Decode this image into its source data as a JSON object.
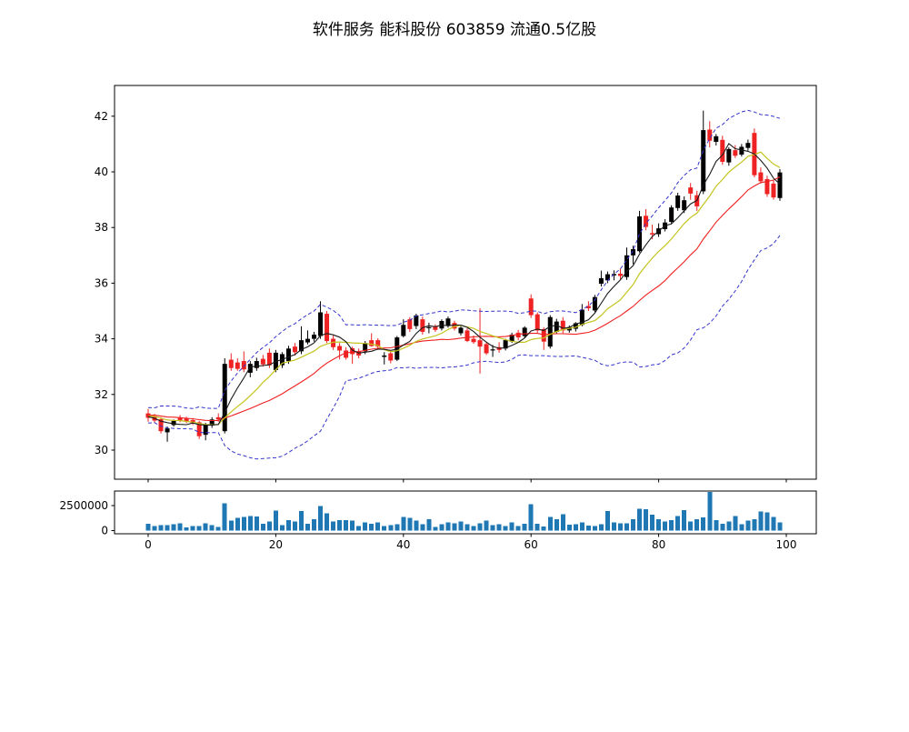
{
  "chart": {
    "title": "软件服务 能科股份 603859 流通0.5亿股"
  },
  "chart_data": {
    "type": "candlestick+volume",
    "title": "软件服务 能科股份 603859 流通0.5亿股",
    "x_axis": {
      "ticks": [
        0,
        20,
        40,
        60,
        80,
        100
      ],
      "lim": [
        -5.3,
        104.7
      ]
    },
    "price_axis": {
      "ticks": [
        30,
        32,
        34,
        36,
        38,
        40,
        42
      ],
      "lim": [
        28.95,
        43.1
      ]
    },
    "volume_axis": {
      "ticks": [
        0,
        2500000
      ],
      "tick_labels": [
        "0",
        "2500000"
      ],
      "lim": [
        -320000,
        3950000
      ]
    },
    "grid": false,
    "legend": false,
    "overlays": {
      "ma_fast": 5,
      "ma_mid": 10,
      "ma_slow": 20,
      "boll_window": 20,
      "boll_k": 2,
      "seed_closes": [
        31.0,
        31.3,
        31.45,
        31.2,
        31.35,
        31.5,
        31.3,
        31.15,
        31.4,
        31.25,
        31.05,
        31.3,
        31.45,
        31.2,
        31.1,
        31.35,
        31.2,
        31.05,
        31.25
      ]
    },
    "colors": {
      "up_candle": "#000000",
      "down_candle": "#ee2222",
      "ma_fast": "#1a1a1a",
      "ma_mid": "#c4c41e",
      "ma_slow": "#f02020",
      "bollinger": "#3333cc",
      "volume_bar": "#1f77b4",
      "axis": "#000000",
      "background": "#ffffff"
    },
    "candles_format": [
      "open",
      "high",
      "low",
      "close",
      "volume"
    ],
    "candles": [
      [
        31.32,
        31.48,
        31.02,
        31.16,
        700000
      ],
      [
        31.22,
        31.3,
        30.98,
        31.06,
        440000
      ],
      [
        31.11,
        31.18,
        30.6,
        30.68,
        530000
      ],
      [
        30.64,
        30.85,
        30.3,
        30.78,
        530000
      ],
      [
        30.9,
        31.1,
        30.85,
        31.05,
        620000
      ],
      [
        31.16,
        31.26,
        31.0,
        31.05,
        740000
      ],
      [
        31.14,
        31.2,
        30.97,
        31.02,
        320000
      ],
      [
        31.08,
        31.15,
        30.9,
        30.97,
        440000
      ],
      [
        31.0,
        31.05,
        30.4,
        30.5,
        440000
      ],
      [
        30.55,
        30.98,
        30.35,
        30.93,
        740000
      ],
      [
        30.88,
        31.18,
        30.8,
        31.1,
        530000
      ],
      [
        31.18,
        31.32,
        31.02,
        31.1,
        380000
      ],
      [
        30.68,
        33.3,
        30.6,
        33.1,
        2740000
      ],
      [
        33.25,
        33.48,
        32.85,
        32.95,
        980000
      ],
      [
        33.15,
        33.3,
        32.85,
        32.92,
        1290000
      ],
      [
        33.2,
        33.55,
        32.8,
        32.9,
        1350000
      ],
      [
        32.78,
        33.2,
        32.62,
        33.1,
        1440000
      ],
      [
        32.95,
        33.32,
        32.85,
        33.2,
        1400000
      ],
      [
        33.28,
        33.42,
        33.0,
        33.08,
        680000
      ],
      [
        33.5,
        33.65,
        32.95,
        33.05,
        920000
      ],
      [
        32.88,
        33.6,
        32.8,
        33.5,
        2000000
      ],
      [
        33.05,
        33.52,
        32.95,
        33.45,
        530000
      ],
      [
        33.2,
        33.75,
        33.1,
        33.65,
        1050000
      ],
      [
        33.72,
        33.85,
        33.4,
        33.52,
        920000
      ],
      [
        33.55,
        34.45,
        33.45,
        33.95,
        1950000
      ],
      [
        33.87,
        34.3,
        33.8,
        34.0,
        680000
      ],
      [
        34.0,
        34.25,
        33.9,
        34.15,
        1140000
      ],
      [
        34.1,
        35.35,
        34.0,
        34.95,
        2440000
      ],
      [
        34.9,
        35.0,
        33.85,
        33.92,
        1740000
      ],
      [
        34.0,
        34.12,
        33.6,
        33.7,
        920000
      ],
      [
        33.74,
        33.85,
        33.26,
        33.58,
        1050000
      ],
      [
        33.58,
        33.7,
        33.25,
        33.32,
        1050000
      ],
      [
        33.66,
        33.72,
        33.1,
        33.45,
        980000
      ],
      [
        33.56,
        33.65,
        33.3,
        33.4,
        440000
      ],
      [
        33.55,
        33.92,
        33.45,
        33.85,
        830000
      ],
      [
        33.95,
        34.2,
        33.72,
        33.74,
        680000
      ],
      [
        33.95,
        34.02,
        33.6,
        33.72,
        830000
      ],
      [
        33.35,
        33.52,
        33.08,
        33.4,
        440000
      ],
      [
        33.48,
        33.56,
        33.12,
        33.22,
        530000
      ],
      [
        33.25,
        34.1,
        33.2,
        34.05,
        620000
      ],
      [
        34.1,
        34.7,
        34.05,
        34.5,
        1350000
      ],
      [
        34.7,
        34.78,
        34.25,
        34.35,
        1290000
      ],
      [
        34.46,
        34.9,
        34.35,
        34.84,
        980000
      ],
      [
        34.7,
        34.8,
        34.15,
        34.25,
        620000
      ],
      [
        34.4,
        34.58,
        34.2,
        34.42,
        1140000
      ],
      [
        34.45,
        34.52,
        34.25,
        34.32,
        380000
      ],
      [
        34.37,
        34.7,
        34.3,
        34.64,
        620000
      ],
      [
        34.46,
        34.8,
        34.4,
        34.73,
        830000
      ],
      [
        34.57,
        34.65,
        34.3,
        34.37,
        740000
      ],
      [
        34.2,
        34.45,
        34.12,
        34.4,
        920000
      ],
      [
        34.3,
        34.38,
        33.88,
        33.92,
        620000
      ],
      [
        34.0,
        34.12,
        33.82,
        33.88,
        440000
      ],
      [
        33.95,
        35.1,
        32.75,
        33.72,
        740000
      ],
      [
        33.81,
        33.9,
        33.42,
        33.48,
        980000
      ],
      [
        33.58,
        33.78,
        33.35,
        33.62,
        530000
      ],
      [
        33.7,
        33.88,
        33.5,
        33.6,
        620000
      ],
      [
        33.65,
        34.0,
        33.58,
        33.95,
        440000
      ],
      [
        33.9,
        34.22,
        33.85,
        34.15,
        830000
      ],
      [
        34.22,
        34.32,
        33.95,
        34.05,
        440000
      ],
      [
        34.1,
        34.45,
        34.02,
        34.4,
        680000
      ],
      [
        35.45,
        35.6,
        34.75,
        34.85,
        2650000
      ],
      [
        34.88,
        34.95,
        34.22,
        34.3,
        680000
      ],
      [
        34.35,
        34.42,
        33.6,
        33.9,
        400000
      ],
      [
        33.72,
        34.85,
        33.65,
        34.78,
        1350000
      ],
      [
        34.25,
        34.72,
        34.18,
        34.62,
        1140000
      ],
      [
        34.65,
        34.78,
        34.2,
        34.3,
        1650000
      ],
      [
        34.3,
        34.48,
        34.22,
        34.42,
        600000
      ],
      [
        34.36,
        34.6,
        34.26,
        34.56,
        620000
      ],
      [
        34.5,
        35.25,
        34.45,
        35.05,
        830000
      ],
      [
        35.18,
        35.35,
        35.0,
        35.1,
        500000
      ],
      [
        35.02,
        35.58,
        34.96,
        35.5,
        450000
      ],
      [
        35.98,
        36.45,
        35.88,
        36.18,
        620000
      ],
      [
        36.1,
        36.42,
        36.0,
        36.32,
        1950000
      ],
      [
        36.28,
        36.46,
        36.1,
        36.33,
        830000
      ],
      [
        36.34,
        36.52,
        36.14,
        36.26,
        740000
      ],
      [
        36.22,
        37.28,
        36.12,
        37.0,
        740000
      ],
      [
        37.0,
        37.35,
        36.68,
        37.22,
        1140000
      ],
      [
        37.15,
        38.6,
        37.1,
        38.4,
        2200000
      ],
      [
        38.42,
        38.66,
        37.9,
        38.02,
        2140000
      ],
      [
        37.8,
        38.1,
        37.58,
        37.75,
        1600000
      ],
      [
        37.76,
        38.15,
        37.66,
        37.97,
        1140000
      ],
      [
        37.94,
        38.3,
        37.86,
        38.18,
        920000
      ],
      [
        38.2,
        38.8,
        38.14,
        38.72,
        1050000
      ],
      [
        38.7,
        39.25,
        38.6,
        39.15,
        1440000
      ],
      [
        38.62,
        39.12,
        38.52,
        38.98,
        2050000
      ],
      [
        39.44,
        39.6,
        39.0,
        39.22,
        920000
      ],
      [
        39.16,
        39.32,
        38.6,
        38.76,
        1140000
      ],
      [
        39.3,
        42.2,
        39.2,
        41.5,
        1300000
      ],
      [
        41.52,
        41.82,
        40.88,
        41.12,
        3850000
      ],
      [
        41.08,
        41.36,
        40.95,
        41.28,
        1050000
      ],
      [
        41.15,
        41.3,
        40.25,
        40.36,
        680000
      ],
      [
        40.34,
        40.88,
        40.22,
        40.82,
        920000
      ],
      [
        40.78,
        40.96,
        40.5,
        40.58,
        1440000
      ],
      [
        40.62,
        41.0,
        40.55,
        40.9,
        620000
      ],
      [
        40.86,
        41.16,
        40.76,
        41.04,
        980000
      ],
      [
        41.4,
        41.56,
        39.8,
        39.88,
        1140000
      ],
      [
        39.98,
        40.16,
        39.58,
        39.66,
        1900000
      ],
      [
        39.74,
        39.86,
        39.1,
        39.2,
        1830000
      ],
      [
        39.58,
        39.7,
        39.0,
        39.08,
        1350000
      ],
      [
        39.06,
        40.1,
        38.96,
        39.98,
        830000
      ]
    ]
  }
}
